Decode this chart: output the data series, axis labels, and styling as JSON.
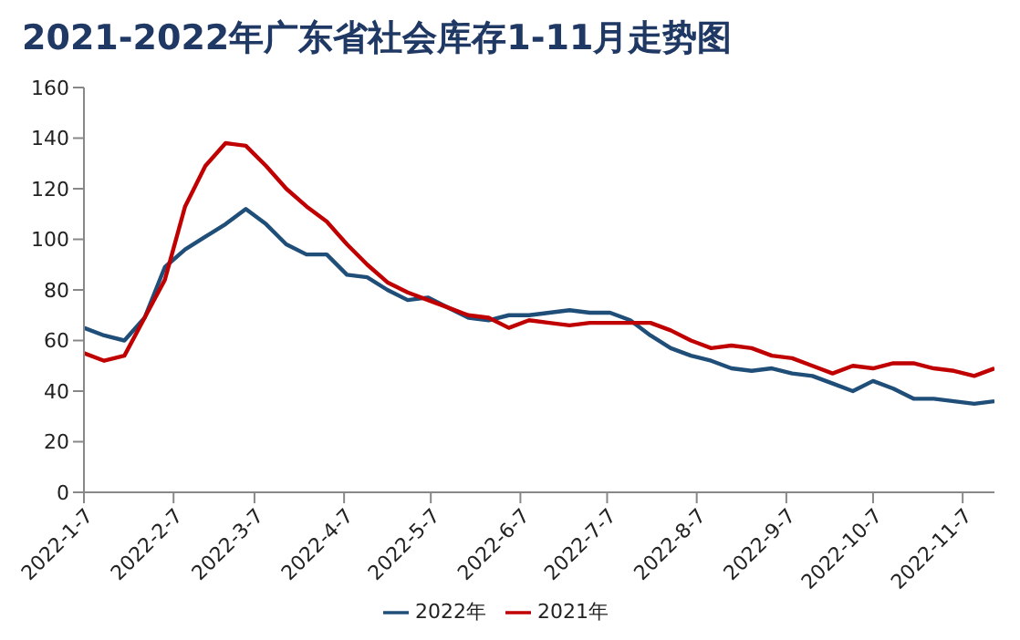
{
  "chart_data": {
    "type": "line",
    "title": "2021-2022年广东省社会库存1-11月走势图",
    "x": [
      "2022-01-07",
      "2022-01-14",
      "2022-01-21",
      "2022-01-28",
      "2022-02-04",
      "2022-02-11",
      "2022-02-18",
      "2022-02-25",
      "2022-03-04",
      "2022-03-11",
      "2022-03-18",
      "2022-03-25",
      "2022-04-01",
      "2022-04-08",
      "2022-04-15",
      "2022-04-22",
      "2022-04-29",
      "2022-05-06",
      "2022-05-13",
      "2022-05-20",
      "2022-05-27",
      "2022-06-03",
      "2022-06-10",
      "2022-06-17",
      "2022-06-24",
      "2022-07-01",
      "2022-07-08",
      "2022-07-15",
      "2022-07-22",
      "2022-07-29",
      "2022-08-05",
      "2022-08-12",
      "2022-08-19",
      "2022-08-26",
      "2022-09-02",
      "2022-09-09",
      "2022-09-16",
      "2022-09-23",
      "2022-09-30",
      "2022-10-07",
      "2022-10-14",
      "2022-10-21",
      "2022-10-28",
      "2022-11-04",
      "2022-11-11",
      "2022-11-18"
    ],
    "series": [
      {
        "name": "2022年",
        "color": "#1f4e79",
        "values": [
          65,
          62,
          60,
          69,
          89,
          96,
          101,
          106,
          112,
          106,
          98,
          94,
          94,
          86,
          85,
          80,
          76,
          77,
          73,
          69,
          68,
          70,
          70,
          71,
          72,
          71,
          71,
          68,
          62,
          57,
          54,
          52,
          49,
          48,
          49,
          47,
          46,
          43,
          40,
          44,
          41,
          37,
          37,
          36,
          35,
          36
        ]
      },
      {
        "name": "2021年",
        "color": "#c00000",
        "values": [
          55,
          52,
          54,
          69,
          84,
          113,
          129,
          138,
          137,
          129,
          120,
          113,
          107,
          98,
          90,
          83,
          79,
          76,
          73,
          70,
          69,
          65,
          68,
          67,
          66,
          67,
          67,
          67,
          67,
          64,
          60,
          57,
          58,
          57,
          54,
          53,
          50,
          47,
          50,
          49,
          51,
          51,
          49,
          48,
          46,
          49
        ]
      }
    ],
    "xlim": [
      "2022-01-07",
      "2022-11-18"
    ],
    "xticks": [
      {
        "value": "2022-01-07",
        "label": "2022-1-7"
      },
      {
        "value": "2022-02-07",
        "label": "2022-2-7"
      },
      {
        "value": "2022-03-07",
        "label": "2022-3-7"
      },
      {
        "value": "2022-04-07",
        "label": "2022-4-7"
      },
      {
        "value": "2022-05-07",
        "label": "2022-5-7"
      },
      {
        "value": "2022-06-07",
        "label": "2022-6-7"
      },
      {
        "value": "2022-07-07",
        "label": "2022-7-7"
      },
      {
        "value": "2022-08-07",
        "label": "2022-8-7"
      },
      {
        "value": "2022-09-07",
        "label": "2022-9-7"
      },
      {
        "value": "2022-10-07",
        "label": "2022-10-7"
      },
      {
        "value": "2022-11-07",
        "label": "2022-11-7"
      }
    ],
    "ylim": [
      0,
      160
    ],
    "yticks": [
      0,
      20,
      40,
      60,
      80,
      100,
      120,
      140,
      160
    ],
    "grid": false,
    "legend": "bottom",
    "marker": "none",
    "line_style": "solid"
  }
}
